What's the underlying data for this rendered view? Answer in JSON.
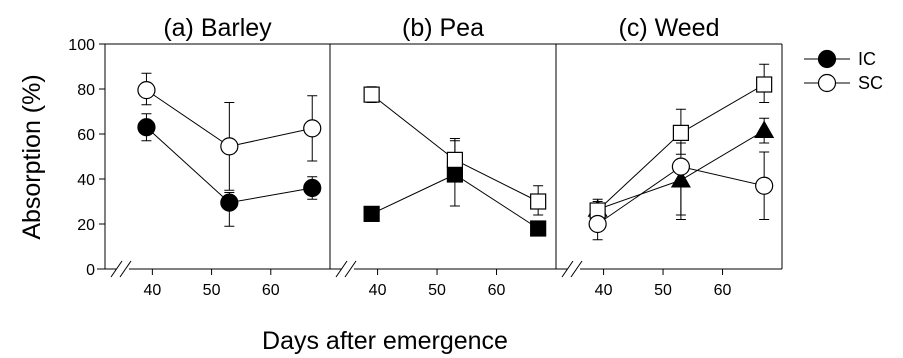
{
  "chart_data": {
    "type": "scatter",
    "xlabel": "Days after emergence",
    "ylabel": "Absorption (%)",
    "ylim": [
      0,
      100
    ],
    "yticks": [
      0,
      20,
      40,
      60,
      80,
      100
    ],
    "xlim": [
      32,
      70
    ],
    "xticks": [
      40,
      50,
      60
    ],
    "legend": {
      "placement": "right",
      "entries": [
        {
          "label": "IC",
          "marker": "filled"
        },
        {
          "label": "SC",
          "marker": "open"
        }
      ]
    },
    "panels": [
      {
        "title": "(a) Barley",
        "series": [
          {
            "marker": "circle",
            "fill": "#000000",
            "x": [
              39,
              53,
              67
            ],
            "y": [
              63,
              29.5,
              36
            ],
            "err": [
              [
                57,
                69
              ],
              [
                19,
                34
              ],
              [
                31,
                41
              ]
            ]
          },
          {
            "marker": "circle",
            "fill": "#ffffff",
            "x": [
              39,
              53,
              67
            ],
            "y": [
              79.5,
              54.5,
              62.5
            ],
            "err": [
              [
                73,
                87
              ],
              [
                35,
                74
              ],
              [
                48,
                77
              ]
            ]
          }
        ]
      },
      {
        "title": "(b) Pea",
        "series": [
          {
            "marker": "square",
            "fill": "#000000",
            "x": [
              39,
              53,
              67
            ],
            "y": [
              24.5,
              42,
              18
            ],
            "err": [
              [
                24.5,
                24.5
              ],
              [
                28,
                58
              ],
              [
                16,
                20
              ]
            ]
          },
          {
            "marker": "square",
            "fill": "#ffffff",
            "x": [
              39,
              53,
              67
            ],
            "y": [
              77.5,
              48.5,
              30
            ],
            "err": [
              [
                74,
                81
              ],
              [
                39,
                57
              ],
              [
                24,
                37
              ]
            ]
          }
        ]
      },
      {
        "title": "(c) Weed",
        "series": [
          {
            "marker": "triangle",
            "fill": "#000000",
            "x": [
              39,
              53,
              67
            ],
            "y": [
              26.5,
              39.5,
              61.5
            ],
            "err": [
              [
                23,
                30
              ],
              [
                22,
                46
              ],
              [
                56,
                67
              ]
            ]
          },
          {
            "marker": "square",
            "fill": "#ffffff",
            "x": [
              39,
              53,
              67
            ],
            "y": [
              26,
              60.5,
              82
            ],
            "err": [
              [
                22,
                31
              ],
              [
                51,
                71
              ],
              [
                74,
                91
              ]
            ]
          },
          {
            "marker": "circle",
            "fill": "#ffffff",
            "x": [
              39,
              53,
              67
            ],
            "y": [
              20,
              45.5,
              37
            ],
            "err": [
              [
                13,
                25
              ],
              [
                24,
                56
              ],
              [
                22,
                52
              ]
            ]
          }
        ]
      }
    ]
  }
}
